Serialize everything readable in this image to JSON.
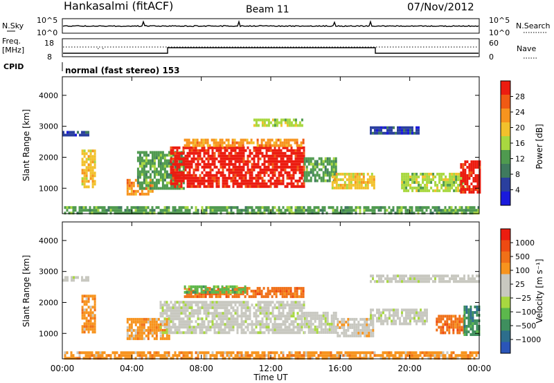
{
  "header": {
    "station": "Hankasalmi (fitACF)",
    "beam": "Beam 11",
    "date": "07/Nov/2012"
  },
  "noise_panel": {
    "left_label": "N.Sky",
    "right_label": "N.Search",
    "left_ticks": [
      "10^5",
      "10^0"
    ],
    "right_ticks": [
      "10^5",
      "10^0"
    ]
  },
  "freq_panel": {
    "left_label_1": "Freq.",
    "left_label_2": "[MHz]",
    "left_ticks": [
      "18",
      "8"
    ],
    "right_label": "Nave",
    "right_ticks": [
      "60",
      "0"
    ],
    "cpid_label": "CPID",
    "mode_text": "normal (fast stereo) 153"
  },
  "colors": {
    "power_scale": [
      "#1a1adc",
      "#2a3f9e",
      "#3f7a5e",
      "#4f9a4f",
      "#a8d840",
      "#f2c12c",
      "#f7941e",
      "#f05a14",
      "#ec1c10"
    ],
    "velocity_scale": [
      "#2a55b8",
      "#2d6e8c",
      "#3f8f5e",
      "#5cb84c",
      "#a8d840",
      "#c8c8c0",
      "#c8c8c0",
      "#f7941e",
      "#f07018",
      "#ee4a12",
      "#ec1c10"
    ]
  },
  "chart_data": [
    {
      "type": "heatmap",
      "name": "power",
      "ylabel": "Slant Range [km]",
      "xlabel": "",
      "colorbar_label": "Power [dB]",
      "colorbar_ticks": [
        "28",
        "24",
        "20",
        "16",
        "12",
        "8",
        "4"
      ],
      "ylim": [
        180,
        4600
      ],
      "yticks": [
        "1000",
        "2000",
        "3000",
        "4000"
      ],
      "xlim": [
        0,
        24
      ],
      "regions": [
        {
          "t0": 0.1,
          "t1": 24.0,
          "r0": 200,
          "r1": 420,
          "level": 3
        },
        {
          "t0": 0.0,
          "t1": 1.5,
          "r0": 2700,
          "r1": 2850,
          "level": 1
        },
        {
          "t0": 1.1,
          "t1": 1.9,
          "r0": 1050,
          "r1": 2250,
          "level": 5
        },
        {
          "t0": 3.7,
          "t1": 5.2,
          "r0": 850,
          "r1": 1300,
          "level": 6
        },
        {
          "t0": 4.3,
          "t1": 7.0,
          "r0": 1000,
          "r1": 2200,
          "level": 3
        },
        {
          "t0": 6.2,
          "t1": 13.9,
          "r0": 1050,
          "r1": 2350,
          "level": 8
        },
        {
          "t0": 7.0,
          "t1": 13.9,
          "r0": 2350,
          "r1": 2600,
          "level": 6
        },
        {
          "t0": 11.0,
          "t1": 13.8,
          "r0": 3000,
          "r1": 3250,
          "level": 4
        },
        {
          "t0": 13.9,
          "t1": 15.8,
          "r0": 1200,
          "r1": 2000,
          "level": 3
        },
        {
          "t0": 15.5,
          "t1": 17.9,
          "r0": 1000,
          "r1": 1500,
          "level": 5
        },
        {
          "t0": 17.7,
          "t1": 20.5,
          "r0": 2750,
          "r1": 3000,
          "level": 1
        },
        {
          "t0": 19.5,
          "t1": 23.1,
          "r0": 950,
          "r1": 1500,
          "level": 4
        },
        {
          "t0": 22.9,
          "t1": 24.0,
          "r0": 900,
          "r1": 1900,
          "level": 8
        }
      ]
    },
    {
      "type": "heatmap",
      "name": "velocity",
      "ylabel": "Slant Range [km]",
      "xlabel": "Time UT",
      "colorbar_label": "Velocity [m s⁻¹]",
      "colorbar_ticks": [
        "1000",
        "500",
        "100",
        "25",
        "−25",
        "−100",
        "−500",
        "−1000"
      ],
      "ylim": [
        180,
        4600
      ],
      "yticks": [
        "1000",
        "2000",
        "3000",
        "4000"
      ],
      "xticks": [
        "00:00",
        "04:00",
        "08:00",
        "12:00",
        "16:00",
        "20:00",
        "00:00"
      ],
      "xlim": [
        0,
        24
      ],
      "regions": [
        {
          "t0": 0.1,
          "t1": 24.0,
          "r0": 200,
          "r1": 420,
          "level": 7
        },
        {
          "t0": 0.0,
          "t1": 1.5,
          "r0": 2700,
          "r1": 2850,
          "level": 5
        },
        {
          "t0": 1.1,
          "t1": 1.9,
          "r0": 1050,
          "r1": 2250,
          "level": 7
        },
        {
          "t0": 3.7,
          "t1": 6.2,
          "r0": 850,
          "r1": 1500,
          "level": 7
        },
        {
          "t0": 5.6,
          "t1": 13.9,
          "r0": 1000,
          "r1": 2050,
          "level": 5
        },
        {
          "t0": 7.0,
          "t1": 13.9,
          "r0": 2150,
          "r1": 2500,
          "level": 8
        },
        {
          "t0": 7.0,
          "t1": 10.5,
          "r0": 2350,
          "r1": 2550,
          "level": 3
        },
        {
          "t0": 13.9,
          "t1": 15.8,
          "r0": 1000,
          "r1": 1700,
          "level": 5
        },
        {
          "t0": 15.8,
          "t1": 17.9,
          "r0": 900,
          "r1": 1500,
          "level": 6
        },
        {
          "t0": 17.7,
          "t1": 21.0,
          "r0": 1300,
          "r1": 1800,
          "level": 5
        },
        {
          "t0": 17.7,
          "t1": 24.0,
          "r0": 2650,
          "r1": 2900,
          "level": 5
        },
        {
          "t0": 21.5,
          "t1": 23.1,
          "r0": 1000,
          "r1": 1600,
          "level": 8
        },
        {
          "t0": 23.1,
          "t1": 24.0,
          "r0": 1000,
          "r1": 1900,
          "level": 2
        }
      ]
    }
  ]
}
